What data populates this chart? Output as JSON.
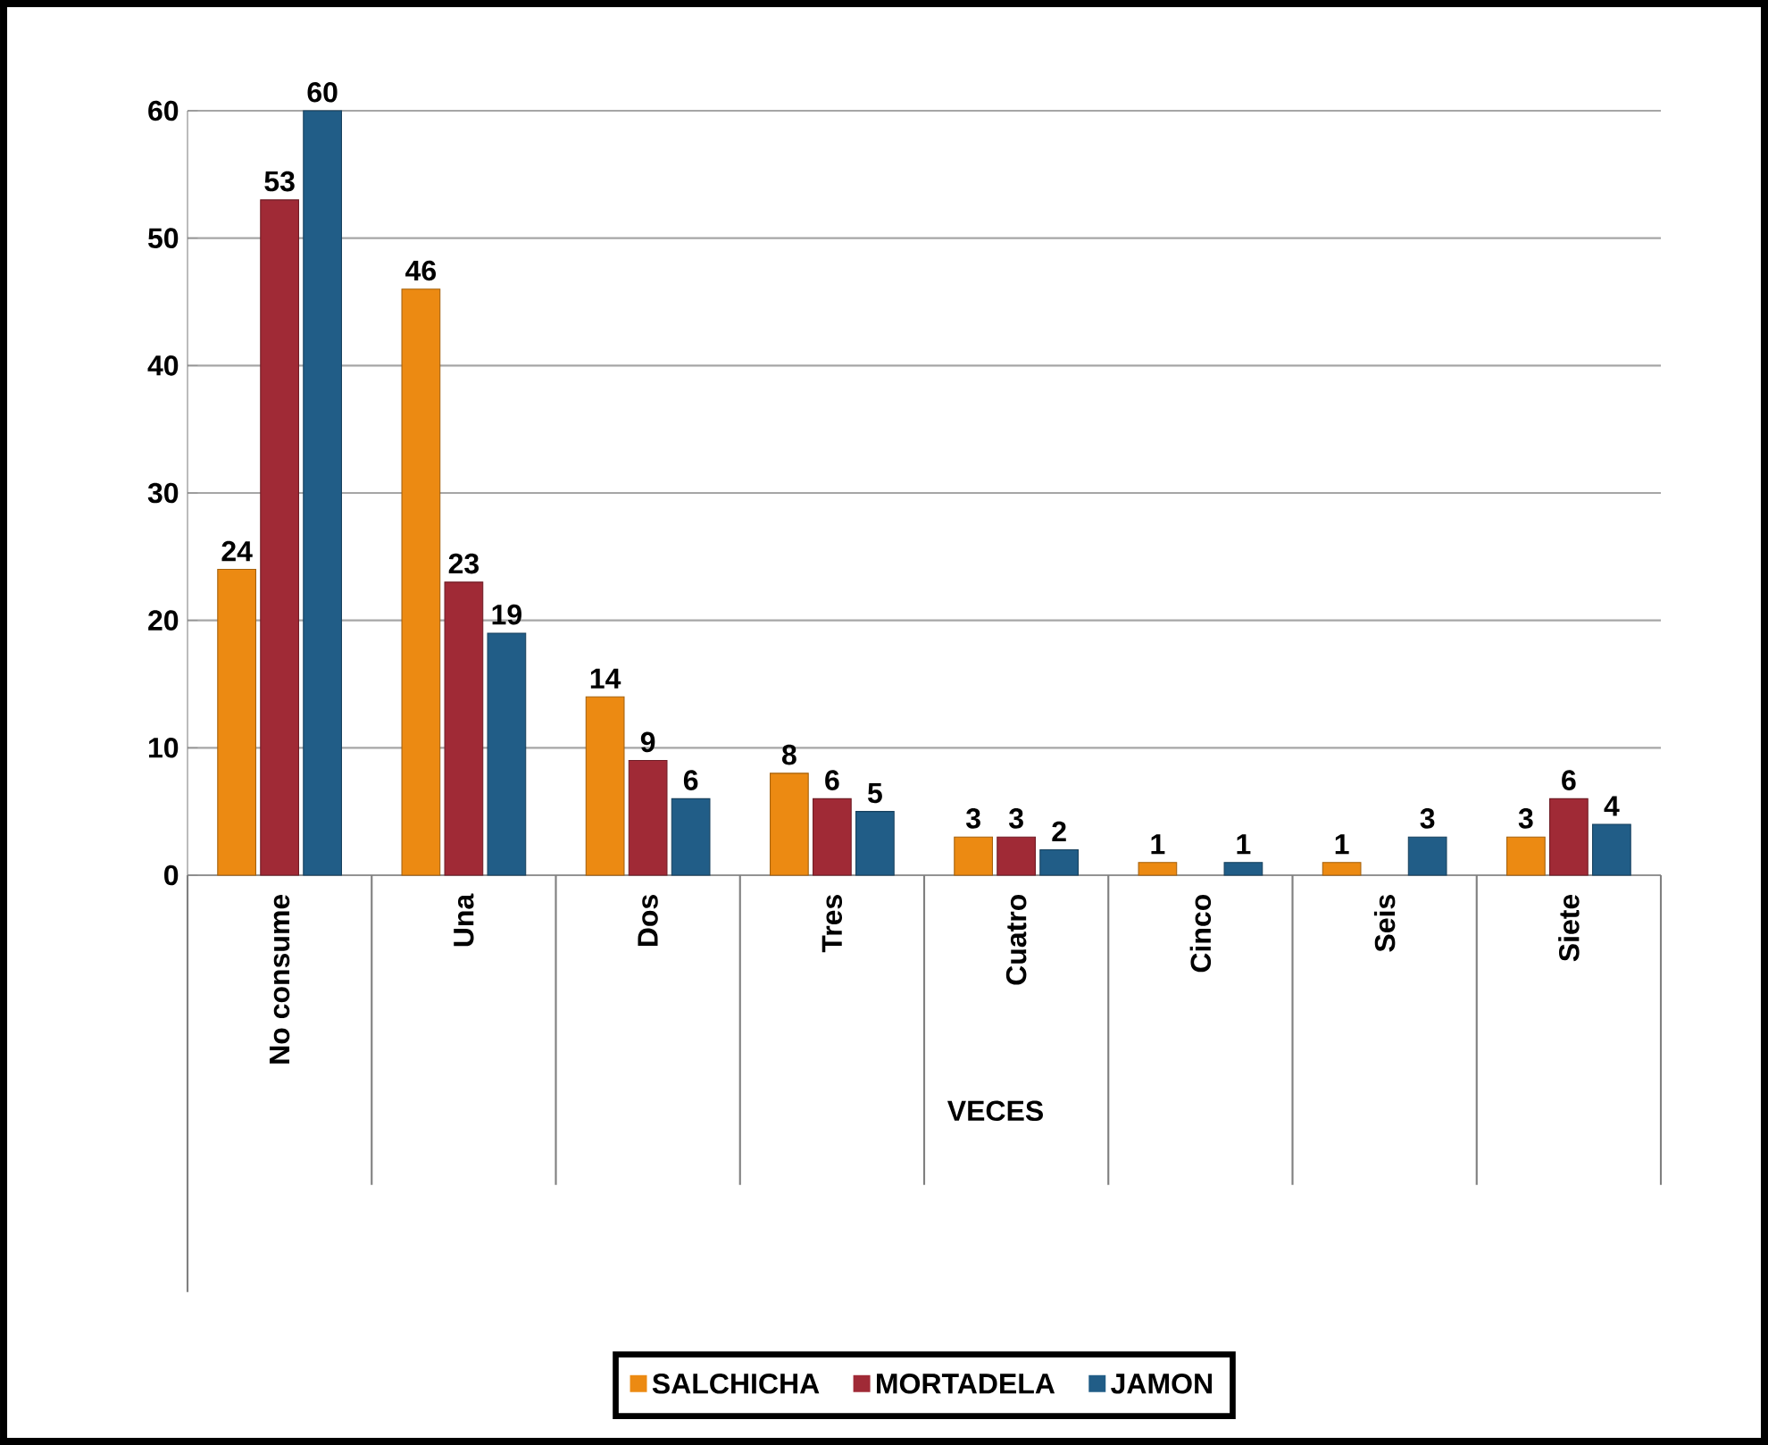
{
  "chart_data": {
    "type": "bar",
    "xlabel": "VECES",
    "categories": [
      "No consume",
      "Una",
      "Dos",
      "Tres",
      "Cuatro",
      "Cinco",
      "Seis",
      "Siete"
    ],
    "series": [
      {
        "name": "SALCHICHA",
        "color": "#ec8a12",
        "values": [
          24,
          46,
          14,
          8,
          3,
          1,
          1,
          3
        ]
      },
      {
        "name": "MORTADELA",
        "color": "#a02a36",
        "values": [
          53,
          23,
          9,
          6,
          3,
          null,
          null,
          6
        ]
      },
      {
        "name": "JAMON",
        "color": "#215d87",
        "values": [
          60,
          19,
          6,
          5,
          2,
          1,
          3,
          4
        ]
      }
    ],
    "ylim": [
      0,
      60
    ],
    "yticks": [
      0,
      10,
      20,
      30,
      40,
      50,
      60
    ],
    "grid": "y",
    "legend": "bottom",
    "data_labels": true
  }
}
